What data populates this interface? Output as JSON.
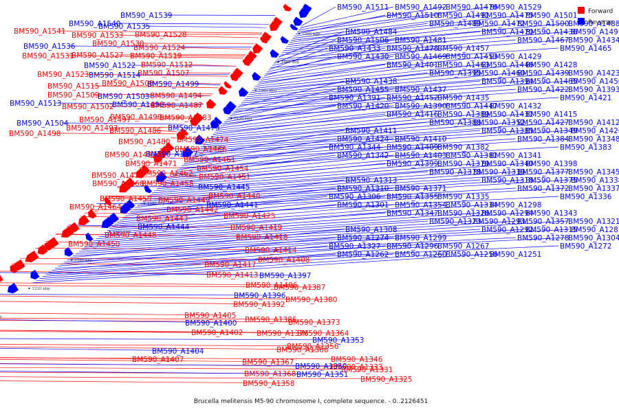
{
  "caption": "Brucella melitensis M5-90 chromosome I, complete sequence. - 0..2126451",
  "legend": [
    {
      "label": "Forward",
      "color": "#ff0000"
    },
    {
      "label": "Reverse",
      "color": "#0000ff"
    }
  ],
  "colors": {
    "forward": "#ff0000",
    "reverse": "#0000ff",
    "backbone": "#888888"
  },
  "ticks": [
    "1500 kbp",
    "1480 kbp",
    "1460 kbp",
    "1440 kbp",
    "1420 kbp",
    "1400 kbp",
    "1380 kbp",
    "1360 kbp",
    "1340 kbp",
    "1320 kbp",
    "1300 kbp",
    "1280 kbp",
    "1260 kbp",
    "1240 kbp"
  ],
  "left_labels": [
    {
      "t": "BM590_A1539",
      "s": "r"
    },
    {
      "t": "BM590_A1540",
      "s": "r"
    },
    {
      "t": "BM590_A1535",
      "s": "r"
    },
    {
      "t": "BM590_A1541",
      "s": "f"
    },
    {
      "t": "BM590_A1533",
      "s": "f"
    },
    {
      "t": "BM590_A1528",
      "s": "f"
    },
    {
      "t": "BM590_A1530",
      "s": "f"
    },
    {
      "t": "BM590_A1536",
      "s": "r"
    },
    {
      "t": "BM590_A1524",
      "s": "f"
    },
    {
      "t": "BM590_A1531",
      "s": "f"
    },
    {
      "t": "BM590_A1527",
      "s": "f"
    },
    {
      "t": "BM590_A1519",
      "s": "f"
    },
    {
      "t": "BM590_A1522",
      "s": "r"
    },
    {
      "t": "BM590_A1512",
      "s": "f"
    },
    {
      "t": "BM590_A1523",
      "s": "f"
    },
    {
      "t": "BM590_A1514",
      "s": "r"
    },
    {
      "t": "BM590_A1507",
      "s": "f"
    },
    {
      "t": "BM590_A1508",
      "s": "f"
    },
    {
      "t": "BM590_A1499",
      "s": "r"
    },
    {
      "t": "BM590_A1515",
      "s": "f"
    },
    {
      "t": "BM590_A1509",
      "s": "f"
    },
    {
      "t": "BM590_A1503",
      "s": "r"
    },
    {
      "t": "BM590_A1494",
      "s": "f"
    },
    {
      "t": "BM590_A1513",
      "s": "r"
    },
    {
      "t": "BM590_A1496",
      "s": "r"
    },
    {
      "t": "BM590_A1487",
      "s": "f"
    },
    {
      "t": "BM590_A1502",
      "s": "f"
    },
    {
      "t": "BM590_A1490",
      "s": "f"
    },
    {
      "t": "BM590_A1483",
      "s": "f"
    },
    {
      "t": "BM590_A1504",
      "s": "r"
    },
    {
      "t": "BM590_A1497",
      "s": "f"
    },
    {
      "t": "BM590_A1493",
      "s": "f"
    },
    {
      "t": "BM590_A1479",
      "s": "r"
    },
    {
      "t": "BM590_A1498",
      "s": "f"
    },
    {
      "t": "BM590_A1486",
      "s": "f"
    },
    {
      "t": "BM590_A1474",
      "s": "f"
    },
    {
      "t": "BM590_A1480",
      "s": "f"
    },
    {
      "t": "BM590_A1466",
      "s": "f"
    },
    {
      "t": "BM590_A1482",
      "s": "f"
    },
    {
      "t": "BM590_A1477",
      "s": "r"
    },
    {
      "t": "BM590_A1461",
      "s": "f"
    },
    {
      "t": "BM590_A1471",
      "s": "f"
    },
    {
      "t": "BM590_A1454",
      "s": "f"
    },
    {
      "t": "BM590_A1462",
      "s": "f"
    },
    {
      "t": "BM590_A1451",
      "s": "f"
    },
    {
      "t": "BM590_A1473",
      "s": "f"
    },
    {
      "t": "BM590_A1468",
      "s": "f"
    },
    {
      "t": "BM590_A1458",
      "s": "f"
    },
    {
      "t": "BM590_A1445",
      "s": "r"
    },
    {
      "t": "BM590_A1440",
      "s": "f"
    },
    {
      "t": "BM590_A1459",
      "s": "f"
    },
    {
      "t": "BM590_A1449",
      "s": "f"
    },
    {
      "t": "BM590_A1441",
      "s": "r"
    },
    {
      "t": "BM590_A1464",
      "s": "f"
    },
    {
      "t": "BM590_A1442",
      "s": "f"
    },
    {
      "t": "BM590_A1425",
      "s": "f"
    },
    {
      "t": "BM590_A1443",
      "s": "f"
    },
    {
      "t": "BM590_A1444",
      "s": "r"
    },
    {
      "t": "BM590_A1419",
      "s": "f"
    },
    {
      "t": "BM590_A1448",
      "s": "f"
    },
    {
      "t": "BM590_A1418",
      "s": "f"
    },
    {
      "t": "BM590_A1450",
      "s": "f"
    },
    {
      "t": "BM590_A1414",
      "s": "f"
    },
    {
      "t": "BM590_A1408",
      "s": "f"
    },
    {
      "t": "BM590_A1417",
      "s": "f"
    },
    {
      "t": "BM590_A1413",
      "s": "f"
    },
    {
      "t": "BM590_A1397",
      "s": "r"
    },
    {
      "t": "BM590_A1406",
      "s": "f"
    },
    {
      "t": "BM590_A1387",
      "s": "f"
    },
    {
      "t": "BM590_A1396",
      "s": "r"
    },
    {
      "t": "BM590_A1380",
      "s": "f"
    },
    {
      "t": "BM590_A1392",
      "s": "f"
    },
    {
      "t": "BM590_A1405",
      "s": "f"
    },
    {
      "t": "BM590_A1373",
      "s": "f"
    },
    {
      "t": "BM590_A1386",
      "s": "f"
    },
    {
      "t": "BM590_A1400",
      "s": "r"
    },
    {
      "t": "BM590_A1364",
      "s": "f"
    },
    {
      "t": "BM590_A1402",
      "s": "f"
    },
    {
      "t": "BM590_A1376",
      "s": "f"
    },
    {
      "t": "BM590_A1353",
      "s": "r"
    },
    {
      "t": "BM590_A1404",
      "s": "r"
    },
    {
      "t": "BM590_A1366",
      "s": "f"
    },
    {
      "t": "BM590_A1407",
      "s": "f"
    },
    {
      "t": "BM590_A1356",
      "s": "f"
    },
    {
      "t": "BM590_A1346",
      "s": "f"
    },
    {
      "t": "BM590_A1333",
      "s": "f"
    },
    {
      "t": "BM590_A1367",
      "s": "f"
    },
    {
      "t": "BM590_A1350",
      "s": "r"
    },
    {
      "t": "BM590_A1331",
      "s": "f"
    },
    {
      "t": "BM590_A1368",
      "s": "f"
    },
    {
      "t": "BM590_A1351",
      "s": "r"
    },
    {
      "t": "BM590_A1358",
      "s": "f"
    },
    {
      "t": "BM590_A1325",
      "s": "f"
    }
  ],
  "right_labels": [
    "BM590_A1511",
    "BM590_A1492",
    "BM590_A1476",
    "BM590_A1529",
    "BM590_A1510",
    "BM590_A1491",
    "BM590_A1475",
    "BM590_A1501",
    "BM590_A1489",
    "BM590_A1472",
    "BM590_A1500",
    "BM590_A1488",
    "BM590_A1470",
    "BM590_A1436",
    "BM590_A1495",
    "BM590_A1484",
    "BM590_A1467",
    "BM590_A1434",
    "BM590_A1506",
    "BM590_A1481",
    "BM590_A1465",
    "BM590_A1433",
    "BM590_A1478",
    "BM590_A1457",
    "BM590_A1430",
    "BM590_A1469",
    "BM590_A1453",
    "BM590_A1429",
    "BM590_A1401",
    "BM590_A1463",
    "BM590_A1446",
    "BM590_A1428",
    "BM590_A1395",
    "BM590_A1460",
    "BM590_A1439",
    "BM590_A1423",
    "BM590_A1394",
    "BM590_A1485",
    "BM590_A1456",
    "BM590_A1438",
    "BM590_A1422",
    "BM590_A1393",
    "BM590_A1455",
    "BM590_A1437",
    "BM590_A1421",
    "BM590_A1391",
    "BM590_A1452",
    "BM590_A1435",
    "BM590_A1420",
    "BM590_A1390",
    "BM590_A1447",
    "BM590_A1432",
    "BM590_A1416",
    "BM590_A1389",
    "BM590_A1431",
    "BM590_A1415",
    "BM590_A1388",
    "BM590_A1352",
    "BM590_A1427",
    "BM590_A1412",
    "BM590_A1385",
    "BM590_A1349",
    "BM590_A1426",
    "BM590_A1411",
    "BM590_A1384",
    "BM590_A1348",
    "BM590_A1424",
    "BM590_A1410",
    "BM590_A1383",
    "BM590_A1344",
    "BM590_A1409",
    "BM590_A1382",
    "BM590_A1342",
    "BM590_A1403",
    "BM590_A1381",
    "BM590_A1341",
    "BM590_A1399",
    "BM590_A1379",
    "BM590_A1340",
    "BM590_A1398",
    "BM590_A1378",
    "BM590_A1339",
    "BM590_A1377",
    "BM590_A1345",
    "BM590_A1318",
    "BM590_A1375",
    "BM590_A1338",
    "BM590_A1313",
    "BM590_A1372",
    "BM590_A1337",
    "BM590_A1310",
    "BM590_A1371",
    "BM590_A1336",
    "BM590_A1306",
    "BM590_A1355",
    "BM590_A1335",
    "BM590_A1301",
    "BM590_A1354",
    "BM590_A1334",
    "BM590_A1298",
    "BM590_A1347",
    "BM590_A1326",
    "BM590_A1294",
    "BM590_A1343",
    "BM590_A1323",
    "BM590_A1293",
    "BM590_A1357",
    "BM590_A1321",
    "BM590_A1292",
    "BM590_A1315",
    "BM590_A1287",
    "BM590_A1308",
    "BM590_A1278",
    "BM590_A1304",
    "BM590_A1274",
    "BM590_A1299",
    "BM590_A1272",
    "BM590_A1327",
    "BM590_A1296",
    "BM590_A1267",
    "BM590_A1262",
    "BM590_A1260",
    "BM590_A1256",
    "BM590_A1251"
  ]
}
